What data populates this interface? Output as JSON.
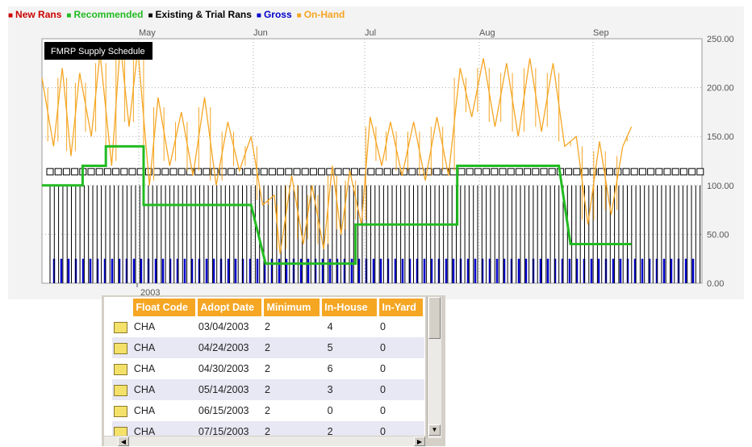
{
  "colors": {
    "new_rans": "#cc0000",
    "recommended": "#22bb22",
    "existing": "#000000",
    "gross": "#0000cc",
    "on_hand": "#f5a623"
  },
  "legend": [
    {
      "label": "New Rans",
      "color": "#cc0000"
    },
    {
      "label": "Recommended",
      "color": "#22bb22"
    },
    {
      "label": "Existing & Trial Rans",
      "color": "#000000"
    },
    {
      "label": "Gross",
      "color": "#0000cc"
    },
    {
      "label": "On-Hand",
      "color": "#f5a623"
    }
  ],
  "chart_data": {
    "type": "line",
    "title": "FMRP Supply Schedule",
    "year_label": "2003",
    "month_labels": [
      "May",
      "Jun",
      "Jul",
      "Aug",
      "Sep"
    ],
    "y_ticks": [
      "250.00",
      "200.00",
      "150.00",
      "100.00",
      "50.00",
      "0.00"
    ],
    "ylim": [
      0,
      250
    ],
    "grid": true,
    "series": [
      {
        "name": "Recommended",
        "type": "step",
        "points": [
          [
            0,
            100
          ],
          [
            0.14,
            100
          ],
          [
            0.14,
            120
          ],
          [
            0.22,
            120
          ],
          [
            0.22,
            140
          ],
          [
            0.35,
            140
          ],
          [
            0.35,
            80
          ],
          [
            0.72,
            80
          ],
          [
            0.77,
            20
          ],
          [
            1.08,
            20
          ],
          [
            1.08,
            60
          ],
          [
            1.43,
            60
          ],
          [
            1.43,
            120
          ],
          [
            1.78,
            120
          ],
          [
            1.82,
            40
          ],
          [
            2.03,
            40
          ]
        ]
      },
      {
        "name": "On-Hand",
        "type": "line",
        "points": [
          [
            0,
            210
          ],
          [
            0.04,
            140
          ],
          [
            0.07,
            220
          ],
          [
            0.1,
            130
          ],
          [
            0.13,
            215
          ],
          [
            0.17,
            150
          ],
          [
            0.2,
            235
          ],
          [
            0.24,
            120
          ],
          [
            0.27,
            245
          ],
          [
            0.3,
            160
          ],
          [
            0.33,
            240
          ],
          [
            0.37,
            100
          ],
          [
            0.4,
            190
          ],
          [
            0.44,
            120
          ],
          [
            0.48,
            175
          ],
          [
            0.52,
            110
          ],
          [
            0.56,
            190
          ],
          [
            0.6,
            100
          ],
          [
            0.64,
            165
          ],
          [
            0.68,
            115
          ],
          [
            0.72,
            150
          ],
          [
            0.76,
            80
          ],
          [
            0.8,
            90
          ],
          [
            0.82,
            30
          ],
          [
            0.86,
            110
          ],
          [
            0.9,
            40
          ],
          [
            0.93,
            100
          ],
          [
            0.97,
            35
          ],
          [
            1.0,
            120
          ],
          [
            1.03,
            50
          ],
          [
            1.06,
            115
          ],
          [
            1.1,
            60
          ],
          [
            1.13,
            170
          ],
          [
            1.17,
            120
          ],
          [
            1.2,
            165
          ],
          [
            1.24,
            110
          ],
          [
            1.28,
            165
          ],
          [
            1.32,
            105
          ],
          [
            1.36,
            170
          ],
          [
            1.4,
            110
          ],
          [
            1.44,
            220
          ],
          [
            1.48,
            170
          ],
          [
            1.52,
            230
          ],
          [
            1.56,
            160
          ],
          [
            1.6,
            225
          ],
          [
            1.64,
            150
          ],
          [
            1.68,
            230
          ],
          [
            1.72,
            155
          ],
          [
            1.76,
            225
          ],
          [
            1.8,
            140
          ],
          [
            1.84,
            150
          ],
          [
            1.88,
            60
          ],
          [
            1.92,
            145
          ],
          [
            1.96,
            70
          ],
          [
            2.0,
            140
          ],
          [
            2.03,
            160
          ]
        ]
      }
    ],
    "gross_bar_value": 25,
    "existing_bar_value": 100
  },
  "grid_table": {
    "columns": [
      "Float Code",
      "Adopt Date",
      "Minimum",
      "In-House",
      "In-Yard"
    ],
    "rows": [
      [
        "CHA",
        "03/04/2003",
        "2",
        "4",
        "0"
      ],
      [
        "CHA",
        "04/24/2003",
        "2",
        "5",
        "0"
      ],
      [
        "CHA",
        "04/30/2003",
        "2",
        "6",
        "0"
      ],
      [
        "CHA",
        "05/14/2003",
        "2",
        "3",
        "0"
      ],
      [
        "CHA",
        "06/15/2003",
        "2",
        "0",
        "0"
      ],
      [
        "CHA",
        "07/15/2003",
        "2",
        "2",
        "0"
      ]
    ]
  }
}
